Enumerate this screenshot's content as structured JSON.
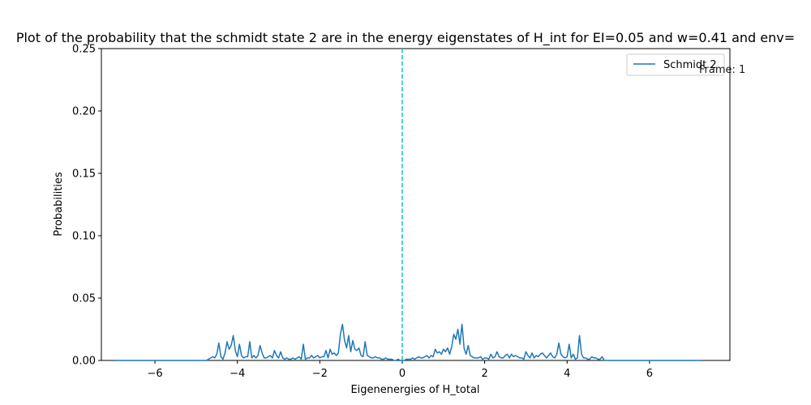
{
  "chart_data": {
    "type": "line",
    "title": "Plot of the probability that the schmidt state 2  are in the energy eigenstates of H_int for EI=0.05 and w=0.41 and env=",
    "xlabel": "Eigenenergies of H_total",
    "ylabel": "Probabilities",
    "xlim": [
      -7.3,
      7.95
    ],
    "ylim": [
      0,
      0.25
    ],
    "x_ticks": [
      "−6",
      "−4",
      "−2",
      "0",
      "2",
      "4",
      "6"
    ],
    "x_tick_values": [
      -6,
      -4,
      -2,
      0,
      2,
      4,
      6
    ],
    "y_ticks": [
      "0.00",
      "0.05",
      "0.10",
      "0.15",
      "0.20",
      "0.25"
    ],
    "y_tick_values": [
      0,
      0.05,
      0.1,
      0.15,
      0.2,
      0.25
    ],
    "grid": false,
    "legend_position": "top-right",
    "annotation": "Frame: 1",
    "vline": {
      "x": 0,
      "style": "dashed",
      "color": "#17becf"
    },
    "series": [
      {
        "name": "Schmidt 2",
        "color": "#1f77b4",
        "x": [
          -6.95,
          -4.75,
          -4.6,
          -4.55,
          -4.5,
          -4.45,
          -4.4,
          -4.35,
          -4.3,
          -4.25,
          -4.2,
          -4.15,
          -4.1,
          -4.05,
          -4.0,
          -3.95,
          -3.9,
          -3.85,
          -3.8,
          -3.75,
          -3.7,
          -3.65,
          -3.6,
          -3.55,
          -3.5,
          -3.45,
          -3.4,
          -3.35,
          -3.3,
          -3.25,
          -3.2,
          -3.15,
          -3.1,
          -3.05,
          -3.0,
          -2.95,
          -2.9,
          -2.85,
          -2.8,
          -2.75,
          -2.7,
          -2.65,
          -2.6,
          -2.55,
          -2.5,
          -2.45,
          -2.4,
          -2.35,
          -2.3,
          -2.25,
          -2.2,
          -2.15,
          -2.1,
          -2.05,
          -2.0,
          -1.95,
          -1.9,
          -1.85,
          -1.8,
          -1.75,
          -1.7,
          -1.65,
          -1.6,
          -1.55,
          -1.5,
          -1.45,
          -1.4,
          -1.35,
          -1.3,
          -1.25,
          -1.2,
          -1.15,
          -1.1,
          -1.05,
          -1.0,
          -0.95,
          -0.9,
          -0.85,
          -0.8,
          -0.75,
          -0.7,
          -0.65,
          -0.6,
          -0.55,
          -0.5,
          -0.45,
          -0.4,
          -0.35,
          -0.3,
          -0.25,
          -0.2,
          -0.15,
          -0.1,
          -0.05,
          0.0,
          0.05,
          0.1,
          0.15,
          0.2,
          0.25,
          0.3,
          0.35,
          0.4,
          0.45,
          0.5,
          0.55,
          0.6,
          0.65,
          0.7,
          0.75,
          0.8,
          0.85,
          0.9,
          0.95,
          1.0,
          1.05,
          1.1,
          1.15,
          1.2,
          1.25,
          1.3,
          1.35,
          1.4,
          1.45,
          1.5,
          1.55,
          1.6,
          1.65,
          1.7,
          1.75,
          1.8,
          1.85,
          1.9,
          1.95,
          2.0,
          2.05,
          2.1,
          2.15,
          2.2,
          2.25,
          2.3,
          2.35,
          2.4,
          2.45,
          2.5,
          2.55,
          2.6,
          2.65,
          2.7,
          2.75,
          2.8,
          2.85,
          2.9,
          2.95,
          3.0,
          3.05,
          3.1,
          3.15,
          3.2,
          3.25,
          3.3,
          3.35,
          3.4,
          3.45,
          3.5,
          3.55,
          3.6,
          3.65,
          3.7,
          3.75,
          3.8,
          3.85,
          3.9,
          3.95,
          4.0,
          4.05,
          4.1,
          4.15,
          4.2,
          4.25,
          4.3,
          4.35,
          4.4,
          4.45,
          4.5,
          4.55,
          4.6,
          4.65,
          4.7,
          4.75,
          4.8,
          4.85,
          4.9,
          7.25
        ],
        "values": [
          0.0,
          0.0,
          0.003,
          0.002,
          0.005,
          0.014,
          0.003,
          0.001,
          0.006,
          0.015,
          0.009,
          0.012,
          0.02,
          0.008,
          0.003,
          0.013,
          0.004,
          0.002,
          0.003,
          0.003,
          0.015,
          0.002,
          0.004,
          0.002,
          0.004,
          0.012,
          0.006,
          0.002,
          0.002,
          0.003,
          0.004,
          0.002,
          0.008,
          0.004,
          0.002,
          0.007,
          0.002,
          0.001,
          0.002,
          0.001,
          0.001,
          0.002,
          0.001,
          0.002,
          0.003,
          0.001,
          0.013,
          0.001,
          0.002,
          0.002,
          0.004,
          0.002,
          0.003,
          0.004,
          0.002,
          0.003,
          0.003,
          0.008,
          0.002,
          0.009,
          0.005,
          0.006,
          0.004,
          0.006,
          0.021,
          0.029,
          0.016,
          0.01,
          0.02,
          0.007,
          0.016,
          0.009,
          0.008,
          0.01,
          0.004,
          0.003,
          0.015,
          0.004,
          0.003,
          0.002,
          0.002,
          0.003,
          0.002,
          0.002,
          0.001,
          0.001,
          0.002,
          0.001,
          0.001,
          0.001,
          0.0,
          0.0,
          0.001,
          0.0,
          0.0,
          0.0,
          0.001,
          0.001,
          0.001,
          0.002,
          0.001,
          0.002,
          0.003,
          0.002,
          0.002,
          0.003,
          0.004,
          0.002,
          0.004,
          0.003,
          0.009,
          0.006,
          0.007,
          0.005,
          0.009,
          0.007,
          0.01,
          0.005,
          0.011,
          0.021,
          0.017,
          0.025,
          0.013,
          0.029,
          0.01,
          0.005,
          0.012,
          0.004,
          0.003,
          0.002,
          0.002,
          0.002,
          0.003,
          0.001,
          0.002,
          0.002,
          0.001,
          0.005,
          0.002,
          0.003,
          0.007,
          0.003,
          0.002,
          0.002,
          0.004,
          0.005,
          0.002,
          0.005,
          0.003,
          0.004,
          0.003,
          0.002,
          0.002,
          0.001,
          0.007,
          0.004,
          0.002,
          0.006,
          0.002,
          0.004,
          0.003,
          0.005,
          0.006,
          0.004,
          0.002,
          0.004,
          0.006,
          0.003,
          0.002,
          0.005,
          0.014,
          0.005,
          0.003,
          0.002,
          0.003,
          0.013,
          0.002,
          0.005,
          0.001,
          0.002,
          0.02,
          0.005,
          0.002,
          0.002,
          0.001,
          0.001,
          0.003,
          0.002,
          0.002,
          0.001,
          0.001,
          0.003,
          0.0,
          0.0
        ]
      }
    ]
  }
}
